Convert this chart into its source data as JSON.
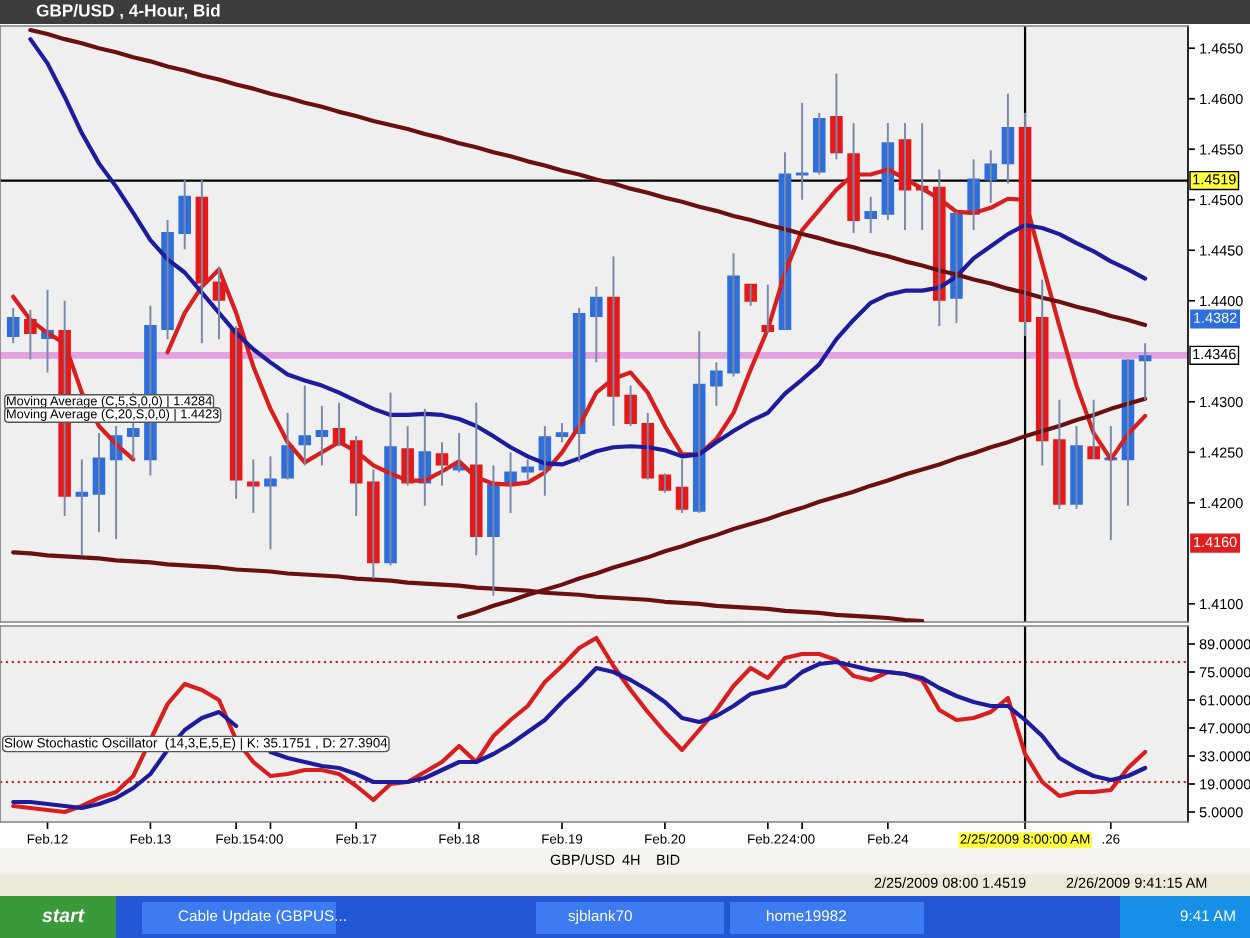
{
  "chart_data": [
    {
      "type": "candlestick",
      "title": "GBP/USD , 4-Hour, Bid",
      "categories": [
        null,
        null,
        "Feb.12",
        null,
        null,
        null,
        null,
        null,
        "Feb.13",
        null,
        null,
        null,
        null,
        "Feb.15",
        null,
        "4:00",
        null,
        null,
        null,
        null,
        "Feb.17",
        null,
        null,
        null,
        null,
        null,
        "Feb.18",
        null,
        null,
        null,
        null,
        null,
        "Feb.19",
        null,
        null,
        null,
        null,
        null,
        "Feb.20",
        null,
        null,
        null,
        null,
        null,
        "Feb.22",
        null,
        "4:00",
        null,
        null,
        null,
        null,
        "Feb.24",
        null,
        null,
        null,
        null,
        null,
        null,
        null,
        "2/25/2009 8:00:00 AM",
        null,
        null,
        null,
        null,
        ".26",
        null,
        null
      ],
      "ohlc": [
        [
          1.4365,
          1.4393,
          1.4358,
          1.4383
        ],
        [
          1.4381,
          1.4391,
          1.4342,
          1.4368
        ],
        [
          1.4363,
          1.4411,
          1.4329,
          1.437
        ],
        [
          1.437,
          1.44,
          1.4187,
          1.4207
        ],
        [
          1.4207,
          1.4243,
          1.4148,
          1.421
        ],
        [
          1.4209,
          1.4269,
          1.4171,
          1.4244
        ],
        [
          1.4243,
          1.4276,
          1.4164,
          1.4266
        ],
        [
          1.4266,
          1.4309,
          1.4243,
          1.4273
        ],
        [
          1.4243,
          1.4395,
          1.4227,
          1.4375
        ],
        [
          1.4372,
          1.448,
          1.4362,
          1.4467
        ],
        [
          1.4467,
          1.452,
          1.4451,
          1.4503
        ],
        [
          1.4502,
          1.452,
          1.4358,
          1.4418
        ],
        [
          1.4418,
          1.4434,
          1.4362,
          1.4401
        ],
        [
          1.4372,
          1.4375,
          1.4204,
          1.4223
        ],
        [
          1.422,
          1.4243,
          1.419,
          1.4217
        ],
        [
          1.4217,
          1.4246,
          1.4154,
          1.4223
        ],
        [
          1.4225,
          1.4289,
          1.4223,
          1.4256
        ],
        [
          1.4258,
          1.4316,
          1.4237,
          1.4266
        ],
        [
          1.4266,
          1.4296,
          1.4237,
          1.4271
        ],
        [
          1.4273,
          1.4299,
          1.4256,
          1.426
        ],
        [
          1.4261,
          1.4266,
          1.4187,
          1.422
        ],
        [
          1.422,
          1.4233,
          1.4125,
          1.4141
        ],
        [
          1.4141,
          1.4309,
          1.4138,
          1.4255
        ],
        [
          1.4253,
          1.4276,
          1.4217,
          1.422
        ],
        [
          1.422,
          1.4293,
          1.4197,
          1.425
        ],
        [
          1.4248,
          1.426,
          1.4217,
          1.4238
        ],
        [
          1.4233,
          1.4269,
          1.423,
          1.4237
        ],
        [
          1.4237,
          1.4299,
          1.4148,
          1.4167
        ],
        [
          1.4167,
          1.4237,
          1.4108,
          1.4218
        ],
        [
          1.422,
          1.425,
          1.419,
          1.423
        ],
        [
          1.4231,
          1.4243,
          1.4223,
          1.4235
        ],
        [
          1.4233,
          1.4276,
          1.4207,
          1.4265
        ],
        [
          1.4266,
          1.4279,
          1.426,
          1.4269
        ],
        [
          1.4269,
          1.4393,
          1.424,
          1.4387
        ],
        [
          1.4385,
          1.4414,
          1.4339,
          1.4403
        ],
        [
          1.4403,
          1.4444,
          1.4276,
          1.4306
        ],
        [
          1.4306,
          1.4316,
          1.4276,
          1.4279
        ],
        [
          1.4278,
          1.4289,
          1.4223,
          1.4225
        ],
        [
          1.4227,
          1.4229,
          1.421,
          1.4213
        ],
        [
          1.4215,
          1.4243,
          1.419,
          1.4194
        ],
        [
          1.4192,
          1.437,
          1.419,
          1.4317
        ],
        [
          1.4316,
          1.4339,
          1.4296,
          1.433
        ],
        [
          1.4329,
          1.4447,
          1.4325,
          1.4424
        ],
        [
          1.4416,
          1.4416,
          1.4395,
          1.44
        ],
        [
          1.4375,
          1.4416,
          1.4368,
          1.437
        ],
        [
          1.4372,
          1.4547,
          1.4372,
          1.4525
        ],
        [
          1.4525,
          1.4596,
          1.45,
          1.4526
        ],
        [
          1.4528,
          1.4586,
          1.4525,
          1.458
        ],
        [
          1.4582,
          1.4625,
          1.454,
          1.4547
        ],
        [
          1.4545,
          1.4576,
          1.4467,
          1.448
        ],
        [
          1.4482,
          1.4503,
          1.4467,
          1.4488
        ],
        [
          1.4486,
          1.4576,
          1.448,
          1.4556
        ],
        [
          1.4559,
          1.4576,
          1.447,
          1.451
        ],
        [
          1.4513,
          1.4576,
          1.447,
          1.451
        ],
        [
          1.4512,
          1.453,
          1.4375,
          1.4401
        ],
        [
          1.4403,
          1.4488,
          1.4378,
          1.4486
        ],
        [
          1.4486,
          1.454,
          1.447,
          1.452
        ],
        [
          1.452,
          1.4549,
          1.4497,
          1.4535
        ],
        [
          1.4536,
          1.4605,
          1.4516,
          1.4571
        ],
        [
          1.4571,
          1.4586,
          1.4365,
          1.438
        ],
        [
          1.4383,
          1.4421,
          1.4237,
          1.4262
        ],
        [
          1.4262,
          1.4302,
          1.4194,
          1.4199
        ],
        [
          1.4199,
          1.4276,
          1.4194,
          1.4256
        ],
        [
          1.4255,
          1.4302,
          1.4243,
          1.4244
        ],
        [
          1.4243,
          1.4276,
          1.4163,
          1.4244
        ],
        [
          1.4243,
          1.4342,
          1.4197,
          1.4341
        ],
        [
          1.4341,
          1.4358,
          1.4302,
          1.4345
        ]
      ],
      "colors": [
        "#2f6fdc",
        "#e81818",
        "#2f6fdc",
        "#e81818",
        "#2f6fdc",
        "#2f6fdc",
        "#2f6fdc",
        "#2f6fdc",
        "#2f6fdc",
        "#2f6fdc",
        "#2f6fdc",
        "#e81818",
        "#e81818",
        "#e81818",
        "#e81818",
        "#2f6fdc",
        "#2f6fdc",
        "#2f6fdc",
        "#2f6fdc",
        "#e81818",
        "#e81818",
        "#e81818",
        "#2f6fdc",
        "#e81818",
        "#2f6fdc",
        "#e81818",
        "#2f6fdc",
        "#e81818",
        "#2f6fdc",
        "#2f6fdc",
        "#2f6fdc",
        "#2f6fdc",
        "#2f6fdc",
        "#2f6fdc",
        "#2f6fdc",
        "#e81818",
        "#e81818",
        "#e81818",
        "#e81818",
        "#e81818",
        "#2f6fdc",
        "#2f6fdc",
        "#2f6fdc",
        "#e81818",
        "#e81818",
        "#2f6fdc",
        "#2f6fdc",
        "#2f6fdc",
        "#e81818",
        "#e81818",
        "#2f6fdc",
        "#2f6fdc",
        "#e81818",
        "#e81818",
        "#e81818",
        "#2f6fdc",
        "#2f6fdc",
        "#2f6fdc",
        "#2f6fdc",
        "#e81818",
        "#e81818",
        "#e81818",
        "#2f6fdc",
        "#e81818",
        "#2f6fdc",
        "#2f6fdc",
        "#2f6fdc"
      ],
      "series": [
        {
          "type": "line",
          "color": "#d81e1e",
          "values": [
            1.4404,
            1.4381,
            1.4368,
            1.4358,
            1.4309,
            1.4276,
            1.4258,
            1.4243,
            null,
            1.4349,
            1.4388,
            1.4414,
            1.4431,
            1.4388,
            1.4335,
            1.4293,
            1.426,
            1.424,
            1.425,
            1.426,
            1.4251,
            1.4237,
            1.4229,
            1.4222,
            1.4222,
            1.4231,
            1.4241,
            1.4225,
            1.4219,
            1.4218,
            1.422,
            1.423,
            1.425,
            1.4276,
            1.4309,
            1.4323,
            1.4329,
            1.4309,
            1.4276,
            1.4248,
            1.4248,
            1.4263,
            1.4289,
            1.4332,
            1.4372,
            1.4428,
            1.447,
            1.449,
            1.451,
            1.4525,
            1.4525,
            1.453,
            1.4521,
            1.4511,
            1.4501,
            1.4488,
            1.4487,
            1.4492,
            1.4501,
            1.45,
            1.4437,
            1.4375,
            1.4316,
            1.4269,
            1.4243,
            1.4268,
            1.4286
          ]
        },
        {
          "type": "line",
          "color": "#1c1c9c",
          "values": [
            null,
            1.4659,
            1.4635,
            1.4602,
            1.4566,
            1.4536,
            1.4513,
            1.4487,
            1.446,
            1.4441,
            1.4428,
            1.4408,
            1.4388,
            1.4368,
            1.4352,
            1.4339,
            1.4327,
            1.4321,
            1.4316,
            1.4309,
            1.4301,
            1.4293,
            1.4287,
            1.4287,
            1.4288,
            1.4287,
            1.4283,
            1.4276,
            1.4266,
            1.4255,
            1.4246,
            1.4239,
            1.4238,
            1.4244,
            1.4251,
            1.4255,
            1.4256,
            1.4255,
            1.4252,
            1.4246,
            1.4248,
            1.426,
            1.4271,
            1.4281,
            1.4289,
            1.4308,
            1.4322,
            1.4337,
            1.4362,
            1.4381,
            1.4398,
            1.4406,
            1.441,
            1.441,
            1.4413,
            1.4424,
            1.4442,
            1.4454,
            1.4466,
            1.4475,
            1.4472,
            1.4466,
            1.4457,
            1.4449,
            1.4439,
            1.4431,
            1.4422
          ]
        },
        {
          "type": "line",
          "color": "#6a1010",
          "values": [
            null,
            1.4668,
            1.4664,
            1.4659,
            1.4655,
            1.465,
            1.4646,
            1.4641,
            1.4637,
            1.4632,
            1.4628,
            1.4623,
            1.4619,
            1.4614,
            1.461,
            1.4605,
            1.4601,
            1.4596,
            1.4592,
            1.4587,
            1.4583,
            1.4578,
            1.4574,
            1.457,
            1.4565,
            1.4561,
            1.4556,
            1.4552,
            1.4547,
            1.4543,
            1.4538,
            1.4534,
            1.4529,
            1.4525,
            1.452,
            1.4516,
            1.4511,
            1.4507,
            1.4502,
            1.4498,
            1.4493,
            1.4489,
            1.4484,
            1.448,
            1.4475,
            1.4471,
            1.4466,
            1.4462,
            1.4457,
            1.4453,
            1.4448,
            1.4444,
            1.4439,
            1.4435,
            1.443,
            1.4426,
            1.4421,
            1.4417,
            1.4412,
            1.4408,
            1.4403,
            1.4399,
            1.4394,
            1.439,
            1.4385,
            1.4381,
            1.4376
          ]
        },
        {
          "type": "line",
          "color": "#6a1010",
          "values": [
            1.4151,
            1.415,
            1.4148,
            1.4147,
            1.4146,
            1.4145,
            1.4143,
            1.4142,
            1.4141,
            1.4139,
            1.4138,
            1.4137,
            1.4136,
            1.4134,
            1.4133,
            1.4132,
            1.413,
            1.4129,
            1.4128,
            1.4127,
            1.4125,
            1.4124,
            1.4123,
            1.4121,
            1.412,
            1.4119,
            1.4118,
            1.4116,
            1.4115,
            1.4114,
            1.4113,
            1.4111,
            1.411,
            1.4109,
            1.4107,
            1.4106,
            1.4105,
            1.4104,
            1.4102,
            1.4101,
            1.41,
            1.4098,
            1.4097,
            1.4096,
            1.4095,
            1.4093,
            1.4092,
            1.4091,
            1.4089,
            1.4088,
            1.4087,
            1.4086,
            1.4084,
            1.4083,
            null,
            null,
            null,
            null,
            null,
            null,
            null,
            null,
            null,
            null,
            null,
            null,
            null
          ]
        },
        {
          "type": "line",
          "color": "#6a1010",
          "values": [
            null,
            null,
            null,
            null,
            null,
            null,
            null,
            null,
            null,
            null,
            null,
            null,
            null,
            null,
            null,
            null,
            null,
            null,
            null,
            null,
            null,
            null,
            null,
            null,
            null,
            null,
            1.4087,
            1.4092,
            1.4098,
            1.4103,
            1.4109,
            1.4114,
            1.4119,
            1.4125,
            1.413,
            1.4136,
            1.4141,
            1.4146,
            1.4152,
            1.4157,
            1.4163,
            1.4168,
            1.4174,
            1.4179,
            1.4184,
            1.419,
            1.4195,
            1.4201,
            1.4206,
            1.4211,
            1.4217,
            1.4222,
            1.4228,
            1.4233,
            1.4238,
            1.4244,
            1.4249,
            1.4255,
            1.426,
            1.4266,
            1.4271,
            1.4276,
            1.4282,
            1.4287,
            1.4293,
            1.4298,
            1.4303
          ]
        }
      ],
      "ylim": [
        1.4082,
        1.4672
      ],
      "yticks": [
        {
          "value": 1.465,
          "label": "1.4650"
        },
        {
          "value": 1.46,
          "label": "1.4600"
        },
        {
          "value": 1.455,
          "label": "1.4550"
        },
        {
          "value": 1.45,
          "label": "1.4500"
        },
        {
          "value": 1.445,
          "label": "1.4450"
        },
        {
          "value": 1.44,
          "label": "1.4400"
        },
        {
          "value": 1.43,
          "label": "1.4300"
        },
        {
          "value": 1.425,
          "label": "1.4250"
        },
        {
          "value": 1.42,
          "label": "1.4200"
        },
        {
          "value": 1.41,
          "label": "1.4100"
        }
      ],
      "tick_labels": "y",
      "ref_lines": [
        {
          "axis": "y",
          "value": 1.4519,
          "label": "1.4519",
          "color": "#000000"
        },
        {
          "axis": "y",
          "value": 1.4346,
          "label": "1.4346",
          "color": "#e2a2e2"
        },
        {
          "axis": "x",
          "value": "2/25/2009 8:00:00 AM",
          "color": "#000000"
        }
      ],
      "annotations": [
        "Moving Average (C,5,S,0,0) | 1.4284",
        "Moving Average (C,20,S,0,0) | 1.4423",
        "1.4382",
        "1.4160"
      ]
    },
    {
      "type": "line",
      "categories": [
        null,
        null,
        "Feb.12",
        null,
        null,
        null,
        null,
        null,
        "Feb.13",
        null,
        null,
        null,
        null,
        "Feb.15",
        null,
        "4:00",
        null,
        null,
        null,
        null,
        "Feb.17",
        null,
        null,
        null,
        null,
        null,
        "Feb.18",
        null,
        null,
        null,
        null,
        null,
        "Feb.19",
        null,
        null,
        null,
        null,
        null,
        "Feb.20",
        null,
        null,
        null,
        null,
        null,
        "Feb.22",
        null,
        "4:00",
        null,
        null,
        null,
        null,
        "Feb.24",
        null,
        null,
        null,
        null,
        null,
        null,
        null,
        "2/25/2009 8:00:00 AM",
        null,
        null,
        null,
        null,
        ".26",
        null,
        null
      ],
      "series": [
        {
          "color": "#d81e1e",
          "values": [
            8,
            7,
            6,
            5,
            8,
            12,
            15,
            23,
            41,
            59,
            69,
            66,
            61,
            41,
            30,
            23,
            24,
            26,
            26,
            24,
            18,
            11,
            19,
            20,
            25,
            30,
            38,
            30,
            43,
            51,
            58,
            70,
            78,
            87,
            92,
            78,
            66,
            55,
            45,
            36,
            46,
            56,
            68,
            77,
            72,
            82,
            84,
            84,
            81,
            73,
            71,
            75,
            74,
            71,
            56,
            51,
            52,
            55,
            62,
            34,
            20,
            13,
            15,
            15,
            16,
            27,
            35
          ]
        },
        {
          "color": "#1c1c9c",
          "values": [
            10,
            10,
            9,
            8,
            7,
            9,
            12,
            17,
            24,
            36,
            46,
            52,
            55,
            48,
            null,
            35,
            32,
            30,
            28,
            27,
            24,
            20,
            20,
            20,
            22,
            26,
            30,
            30,
            34,
            39,
            45,
            51,
            60,
            68,
            77,
            75,
            71,
            66,
            60,
            52,
            50,
            53,
            58,
            64,
            66,
            68,
            75,
            79,
            80,
            78,
            76,
            75,
            74,
            72,
            67,
            63,
            60,
            58,
            58,
            51,
            43,
            32,
            27,
            23,
            21,
            23,
            27
          ]
        }
      ],
      "ylim": [
        0,
        98
      ],
      "yticks": [
        {
          "value": 89,
          "label": "89.0000"
        },
        {
          "value": 75,
          "label": "75.0000"
        },
        {
          "value": 61,
          "label": "61.0000"
        },
        {
          "value": 47,
          "label": "47.0000"
        },
        {
          "value": 33,
          "label": "33.0000"
        },
        {
          "value": 19,
          "label": "19.0000"
        },
        {
          "value": 5,
          "label": "5.0000"
        }
      ],
      "ref_lines": [
        {
          "axis": "y",
          "value": 80,
          "color": "#cc2222",
          "line_style": "dotted"
        },
        {
          "axis": "y",
          "value": 20,
          "color": "#cc2222",
          "line_style": "dotted"
        },
        {
          "axis": "x",
          "value": "2/25/2009 8:00:00 AM",
          "color": "#000000"
        }
      ],
      "annotations": [
        "Slow Stochastic Oscillator  (14,3,E,5,E) | K: 35.1751 , D: 27.3904",
        "GBP/USD",
        "4H",
        "BID",
        "2/25/2009 08:00",
        "1.4519",
        "2/26/2009 9:41:15 AM",
        "start",
        "Cable Update (GBPUS...",
        "sjblank70",
        "home19982",
        "9:41 AM"
      ]
    }
  ]
}
